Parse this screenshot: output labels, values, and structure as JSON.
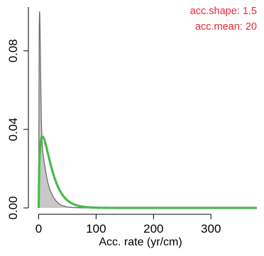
{
  "chart_data": {
    "type": "area",
    "xlabel": "Acc. rate (yr/cm)",
    "ylabel": "",
    "xlim": [
      -8,
      385
    ],
    "ylim": [
      0,
      0.103
    ],
    "x_ticks": [
      0,
      100,
      200,
      300
    ],
    "x_tick_labels": [
      "0",
      "100",
      "200",
      "300"
    ],
    "y_ticks": [
      0.0,
      0.04,
      0.08
    ],
    "y_tick_labels": [
      "0.00",
      "0.04",
      "0.08"
    ],
    "annotations": [
      "acc.shape:  1.5",
      "acc.mean:  20"
    ],
    "annotation_color": "#e8283a",
    "series": [
      {
        "kind": "posterior-filled",
        "color": "#6e6e6e",
        "fill": "#c8c8c8",
        "x": [
          0,
          0.5,
          1,
          1.5,
          2,
          2.5,
          3,
          3.5,
          4,
          4.5,
          5,
          6,
          7,
          8,
          9,
          10,
          12,
          14,
          16,
          18,
          20,
          25,
          30,
          35,
          40,
          50,
          60,
          80,
          100
        ],
        "y": [
          0,
          0.05,
          0.092,
          0.1,
          0.098,
          0.089,
          0.078,
          0.067,
          0.057,
          0.048,
          0.041,
          0.033,
          0.029,
          0.0265,
          0.0245,
          0.0225,
          0.019,
          0.0158,
          0.013,
          0.0108,
          0.009,
          0.0058,
          0.0036,
          0.0022,
          0.0013,
          0.0005,
          0.0002,
          2e-05,
          0
        ]
      },
      {
        "kind": "prior",
        "color": "#4cb84c",
        "shape": 1.5,
        "mean": 20,
        "x_range": [
          0,
          380
        ]
      }
    ]
  }
}
